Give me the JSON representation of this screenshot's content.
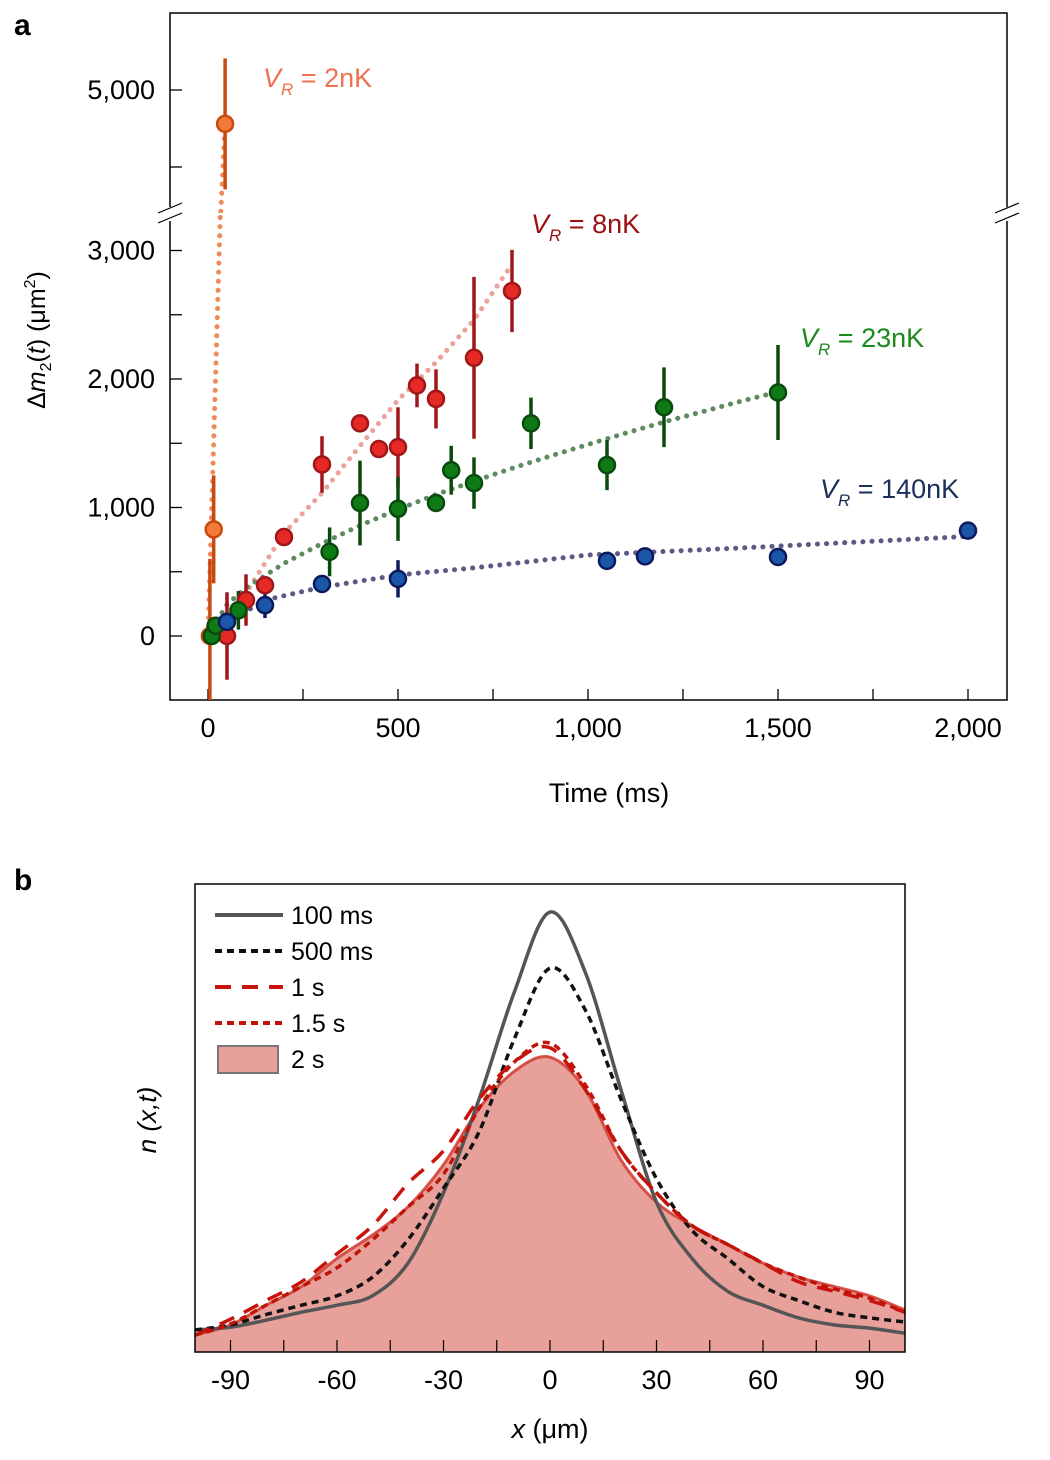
{
  "chart_data": [
    {
      "panel_label": "a",
      "type": "scatter",
      "xlabel": "Time (ms)",
      "ylabel_parts": [
        "Δ",
        "m",
        "2",
        "(",
        "t",
        ") (μm",
        "2",
        ")"
      ],
      "xlim": [
        -100,
        2100
      ],
      "ylim_lower": [
        -500,
        3300
      ],
      "ylim_upper": [
        3400,
        6000
      ],
      "broken_y_axis": true,
      "x_ticks": [
        0,
        500,
        1000,
        1500,
        2000
      ],
      "x_tick_labels": [
        "0",
        "500",
        "1,000",
        "1,500",
        "2,000"
      ],
      "y_ticks": [
        0,
        1000,
        2000,
        3000,
        5000
      ],
      "y_tick_labels": [
        "0",
        "1,000",
        "2,000",
        "3,000",
        "5,000"
      ],
      "grid": false,
      "series": [
        {
          "name": "V_R = 2nK",
          "label_v": "V",
          "label_sub": "R",
          "label_rest": " = 2nK",
          "color": "#f47a3a",
          "edge": "#c84a10",
          "fit_color": "#ef8a5a",
          "label_color": "#f07050",
          "points": [
            [
              5,
              0,
              600
            ],
            [
              15,
              830,
              420
            ],
            [
              45,
              4560,
              850
            ]
          ],
          "fit": [
            [
              0,
              0
            ],
            [
              45,
              4560
            ]
          ]
        },
        {
          "name": "V_R = 8nK",
          "label_v": "V",
          "label_sub": "R",
          "label_rest": " = 8nK",
          "color": "#e52a25",
          "edge": "#a0161a",
          "fit_color": "#eba29a",
          "label_color": "#9a1010",
          "points": [
            [
              50,
              0,
              340
            ],
            [
              100,
              280,
              200
            ],
            [
              150,
              395,
              50
            ],
            [
              200,
              770,
              40
            ],
            [
              300,
              1335,
              220
            ],
            [
              400,
              1655,
              60
            ],
            [
              450,
              1455,
              50
            ],
            [
              500,
              1470,
              310
            ],
            [
              550,
              1950,
              170
            ],
            [
              600,
              1845,
              230
            ],
            [
              700,
              2165,
              630
            ],
            [
              800,
              2685,
              320
            ]
          ],
          "fit": [
            [
              0,
              0
            ],
            [
              100,
              335
            ],
            [
              200,
              800
            ],
            [
              300,
              1113
            ],
            [
              400,
              1480
            ],
            [
              500,
              1836
            ],
            [
              600,
              2130
            ],
            [
              700,
              2460
            ],
            [
              790,
              2850
            ]
          ]
        },
        {
          "name": "V_R = 23nK",
          "label_v": "V",
          "label_sub": "R",
          "label_rest": " = 23nK",
          "color": "#0e7a16",
          "edge": "#0a4a0c",
          "fit_color": "#5e8a5f",
          "label_color": "#1a8a1a",
          "points": [
            [
              10,
              0,
              40
            ],
            [
              20,
              80,
              60
            ],
            [
              80,
              200,
              150
            ],
            [
              320,
              655,
              190
            ],
            [
              400,
              1035,
              330
            ],
            [
              500,
              990,
              250
            ],
            [
              600,
              1035,
              60
            ],
            [
              640,
              1290,
              190
            ],
            [
              700,
              1190,
              200
            ],
            [
              850,
              1655,
              200
            ],
            [
              1050,
              1330,
              195
            ],
            [
              1200,
              1780,
              310
            ],
            [
              1500,
              1895,
              370
            ]
          ],
          "fit": [
            [
              0,
              0
            ],
            [
              50,
              245
            ],
            [
              100,
              375
            ],
            [
              200,
              565
            ],
            [
              300,
              720
            ],
            [
              400,
              860
            ],
            [
              500,
              985
            ],
            [
              600,
              1100
            ],
            [
              700,
              1205
            ],
            [
              800,
              1305
            ],
            [
              900,
              1400
            ],
            [
              1000,
              1490
            ],
            [
              1100,
              1580
            ],
            [
              1200,
              1665
            ],
            [
              1300,
              1745
            ],
            [
              1400,
              1825
            ],
            [
              1500,
              1900
            ]
          ]
        },
        {
          "name": "V_R = 140nK",
          "label_v": "V",
          "label_sub": "R",
          "label_rest": " = 140nK",
          "color": "#1b56a8",
          "edge": "#0a1a5a",
          "fit_color": "#5a5a85",
          "label_color": "#1a2f5a",
          "points": [
            [
              50,
              110,
              60
            ],
            [
              150,
              240,
              100
            ],
            [
              300,
              405,
              40
            ],
            [
              500,
              445,
              145
            ],
            [
              1050,
              585,
              60
            ],
            [
              1150,
              620,
              30
            ],
            [
              1500,
              615,
              70
            ],
            [
              2000,
              820,
              30
            ]
          ],
          "fit": [
            [
              50,
              100
            ],
            [
              150,
              280
            ],
            [
              300,
              380
            ],
            [
              500,
              475
            ],
            [
              700,
              530
            ],
            [
              1000,
              630
            ],
            [
              1400,
              685
            ],
            [
              2000,
              775
            ]
          ]
        }
      ]
    },
    {
      "panel_label": "b",
      "type": "line",
      "xlabel_var": "x",
      "xlabel_unit": " (μm)",
      "ylabel": "n (x,t)",
      "xlim": [
        -100,
        100
      ],
      "ylim": [
        0,
        1
      ],
      "x_ticks": [
        -90,
        -60,
        -30,
        0,
        30,
        60,
        90
      ],
      "x_tick_labels": [
        "-90",
        "-60",
        "-30",
        "0",
        "30",
        "60",
        "90"
      ],
      "y_ticks": [],
      "grid": false,
      "legend_position": "top-left",
      "x": [
        -100,
        -90,
        -80,
        -70,
        -60,
        -50,
        -40,
        -30,
        -20,
        -10,
        0,
        10,
        20,
        30,
        40,
        50,
        60,
        70,
        80,
        90,
        100
      ],
      "series": [
        {
          "name": "100 ms",
          "style": "solid",
          "color": "#555555",
          "values": [
            0.047,
            0.053,
            0.068,
            0.085,
            0.1,
            0.12,
            0.19,
            0.34,
            0.54,
            0.77,
            0.94,
            0.81,
            0.56,
            0.32,
            0.2,
            0.13,
            0.1,
            0.073,
            0.058,
            0.051,
            0.04
          ]
        },
        {
          "name": "500 ms",
          "style": "short-dash",
          "color": "#111111",
          "values": [
            0.047,
            0.058,
            0.08,
            0.1,
            0.12,
            0.16,
            0.24,
            0.35,
            0.47,
            0.67,
            0.82,
            0.73,
            0.54,
            0.37,
            0.26,
            0.2,
            0.14,
            0.11,
            0.085,
            0.073,
            0.064
          ]
        },
        {
          "name": "1 s",
          "style": "long-dash",
          "color": "#c8140c",
          "values": [
            0.036,
            0.07,
            0.11,
            0.15,
            0.21,
            0.27,
            0.36,
            0.43,
            0.54,
            0.62,
            0.65,
            0.56,
            0.43,
            0.34,
            0.27,
            0.23,
            0.19,
            0.15,
            0.13,
            0.11,
            0.085
          ]
        },
        {
          "name": "1.5 s",
          "style": "short-dash",
          "color": "#c0140a",
          "values": [
            0.036,
            0.06,
            0.1,
            0.14,
            0.18,
            0.24,
            0.31,
            0.38,
            0.52,
            0.62,
            0.66,
            0.57,
            0.43,
            0.34,
            0.27,
            0.23,
            0.19,
            0.16,
            0.135,
            0.115,
            0.085
          ]
        },
        {
          "name": "2 s",
          "style": "filled",
          "color": "#e8a19a",
          "edge": "#d03a30",
          "values": [
            0.036,
            0.058,
            0.1,
            0.14,
            0.2,
            0.25,
            0.31,
            0.4,
            0.52,
            0.6,
            0.63,
            0.56,
            0.41,
            0.32,
            0.27,
            0.23,
            0.19,
            0.16,
            0.14,
            0.12,
            0.09
          ]
        }
      ]
    }
  ]
}
